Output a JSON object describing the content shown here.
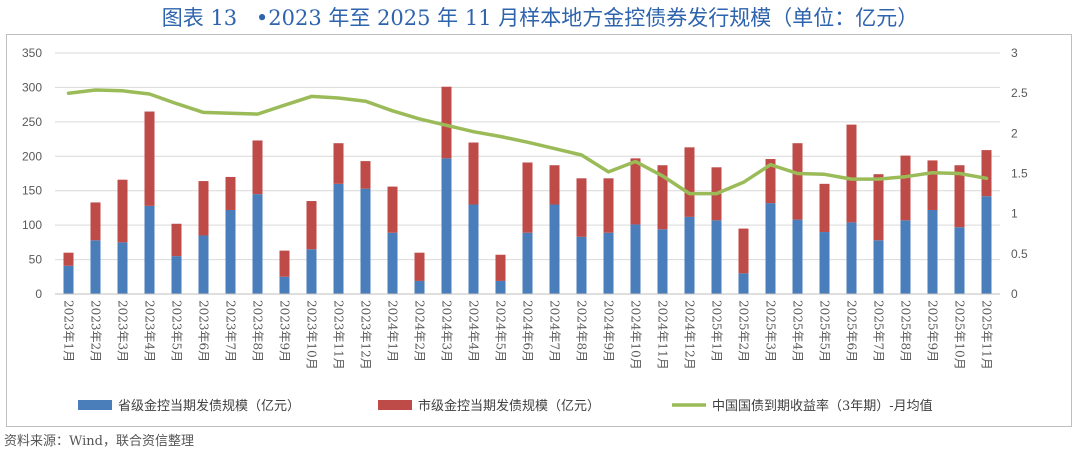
{
  "title": {
    "figure_no": "图表 13",
    "text": "•2023 年至 2025 年 11 月样本地方金控债券发行规模（单位：亿元）"
  },
  "source": "资料来源：Wind，联合资信整理",
  "colors": {
    "provincial": "#4a7ebb",
    "municipal": "#be4b48",
    "yield": "#9bbb59",
    "title": "#2e63ad",
    "axis_text": "#595959",
    "grid": "#d9d9d9"
  },
  "chart_data": {
    "type": "bar",
    "stacked": true,
    "categories": [
      "2023年1月",
      "2023年2月",
      "2023年3月",
      "2023年4月",
      "2023年5月",
      "2023年6月",
      "2023年7月",
      "2023年8月",
      "2023年9月",
      "2023年10月",
      "2023年11月",
      "2023年12月",
      "2024年1月",
      "2024年2月",
      "2024年3月",
      "2024年4月",
      "2024年5月",
      "2024年6月",
      "2024年7月",
      "2024年8月",
      "2024年9月",
      "2024年10月",
      "2024年11月",
      "2024年12月",
      "2025年1月",
      "2025年2月",
      "2025年3月",
      "2025年4月",
      "2025年5月",
      "2025年6月",
      "2025年7月",
      "2025年8月",
      "2025年9月",
      "2025年10月",
      "2025年11月"
    ],
    "series": [
      {
        "name": "省级金控当期发债规模（亿元）",
        "type": "bar",
        "axis": "left",
        "values": [
          41,
          78,
          75,
          128,
          55,
          85,
          122,
          145,
          25,
          65,
          160,
          153,
          89,
          19,
          197,
          130,
          19,
          89,
          130,
          83,
          89,
          101,
          94,
          112,
          107,
          30,
          132,
          108,
          90,
          104,
          78,
          107,
          122,
          97,
          142
        ]
      },
      {
        "name": "市级金控当期发债规模（亿元）",
        "type": "bar",
        "axis": "left",
        "values": [
          19,
          55,
          91,
          137,
          47,
          79,
          48,
          78,
          38,
          70,
          59,
          40,
          67,
          41,
          104,
          90,
          38,
          102,
          57,
          85,
          79,
          96,
          93,
          101,
          77,
          65,
          64,
          111,
          70,
          142,
          96,
          94,
          72,
          90,
          67
        ]
      },
      {
        "name": "中国国债到期收益率（3年期）-月均值",
        "type": "line",
        "axis": "right",
        "values": [
          2.5,
          2.54,
          2.53,
          2.49,
          2.37,
          2.26,
          2.25,
          2.24,
          2.35,
          2.46,
          2.44,
          2.4,
          2.28,
          2.18,
          2.1,
          2.02,
          1.96,
          1.89,
          1.81,
          1.73,
          1.52,
          1.65,
          1.47,
          1.25,
          1.25,
          1.39,
          1.61,
          1.5,
          1.49,
          1.43,
          1.43,
          1.46,
          1.51,
          1.5,
          1.44
        ]
      }
    ],
    "y_left": {
      "min": 0,
      "max": 350,
      "ticks": [
        0,
        50,
        100,
        150,
        200,
        250,
        300,
        350
      ]
    },
    "y_right": {
      "min": 0,
      "max": 3,
      "ticks": [
        "0",
        "0.5",
        "1",
        "1.5",
        "2",
        "2.5",
        "3"
      ]
    },
    "grid": true,
    "legend_position": "bottom"
  }
}
